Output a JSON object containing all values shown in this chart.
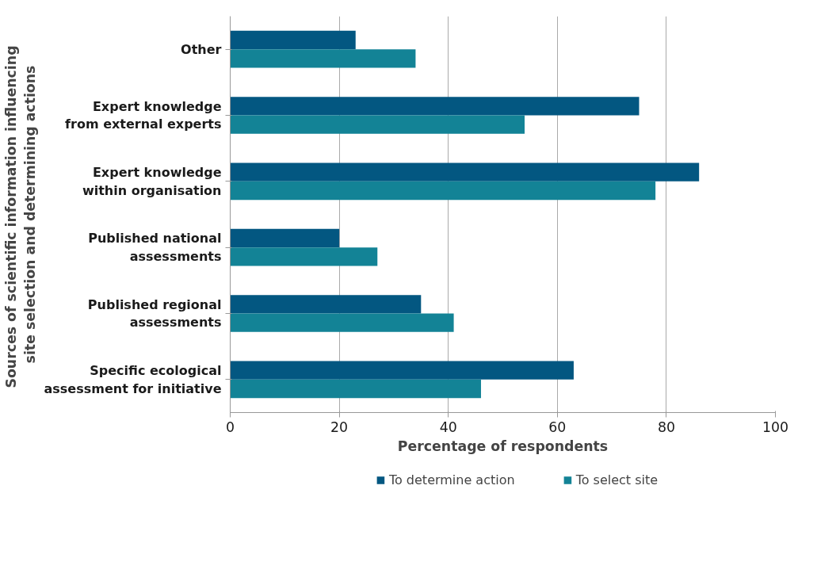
{
  "chart_data": {
    "type": "bar",
    "orientation": "horizontal",
    "categories": [
      "Other",
      "Expert knowledge\nfrom external experts",
      "Expert knowledge\nwithin organisation",
      "Published national\nassessments",
      "Published regional\nassessments",
      "Specific ecological\nassessment for initiative"
    ],
    "series": [
      {
        "name": "To determine action",
        "color": "#035781",
        "values": [
          23,
          75,
          86,
          20,
          35,
          63
        ]
      },
      {
        "name": "To select site",
        "color": "#138396",
        "values": [
          34,
          54,
          78,
          27,
          41,
          46
        ]
      }
    ],
    "xlabel": "Percentage of respondents",
    "ylabel": "Sources of scientific information  influencing\nsite selection and determining actions",
    "xlim": [
      0,
      100
    ],
    "xticks": [
      0,
      20,
      40,
      60,
      80,
      100
    ],
    "grid": "x",
    "legend": "bottom"
  }
}
